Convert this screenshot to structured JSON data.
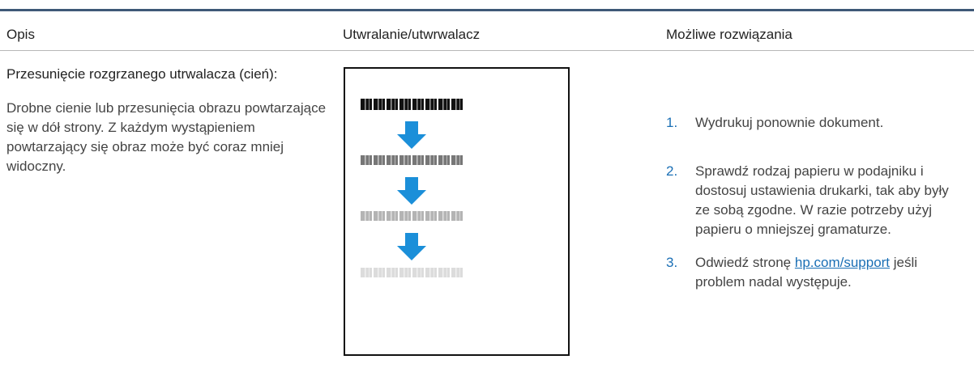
{
  "header": {
    "columns": [
      "Opis",
      "Utwralanie/utwrwalacz",
      "Możliwe rozwiązania"
    ]
  },
  "rows": [
    {
      "title": "Przesunięcie rozgrzanego utrwalacza (cień):",
      "description": "Drobne cienie lub przesunięcia obrazu powtarzające się w dół strony. Z każdym wystąpieniem powtarzający się obraz może być coraz mniej widoczny.",
      "solutions": [
        {
          "number": "1.",
          "text": "Wydrukuj ponownie dokument."
        },
        {
          "number": "2.",
          "text": "Sprawdź rodzaj papieru w podajniku i dostosuj ustawienia drukarki, tak aby były ze sobą zgodne. W razie potrzeby użyj papieru o mniejszej gramaturze."
        },
        {
          "number": "3.",
          "before": "Odwiedź stronę",
          "link": "hp.com/support",
          "after": "jeśli problem nadal występuje."
        }
      ]
    }
  ]
}
